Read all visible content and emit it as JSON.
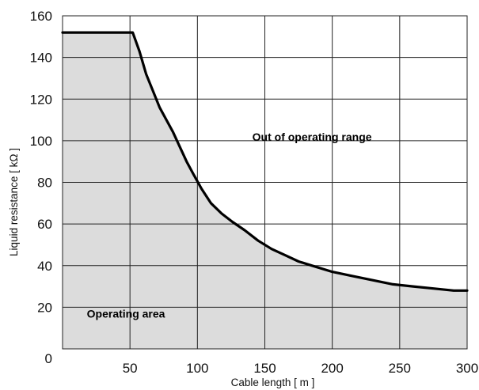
{
  "chart_data": {
    "type": "area",
    "xlabel": "Cable length [ m ]",
    "ylabel": "Liquid resistance [ kΩ ]",
    "xlim": [
      0,
      300
    ],
    "ylim": [
      0,
      160
    ],
    "x_ticks": [
      50,
      100,
      150,
      200,
      250,
      300
    ],
    "y_ticks": [
      0,
      20,
      40,
      60,
      80,
      100,
      120,
      140,
      160
    ],
    "grid": true,
    "area_fill_color": "#dcdcdc",
    "line_color": "#000000",
    "series": [
      {
        "x": [
          0,
          52,
          57,
          62,
          67,
          72,
          77,
          82,
          87,
          92,
          97,
          103,
          110,
          118,
          126,
          135,
          145,
          155,
          165,
          175,
          185,
          200,
          215,
          230,
          245,
          260,
          275,
          290,
          300
        ],
        "y": [
          152,
          152,
          143,
          132,
          124,
          116,
          110,
          104,
          97,
          90,
          84,
          77,
          70,
          65,
          61,
          57,
          52,
          48,
          45,
          42,
          40,
          37,
          35,
          33,
          31,
          30,
          29,
          28,
          28
        ]
      }
    ],
    "annotations": [
      {
        "text": "Out of operating range",
        "x": 185,
        "y": 100
      },
      {
        "text": "Operating area",
        "x": 47,
        "y": 15
      }
    ]
  }
}
